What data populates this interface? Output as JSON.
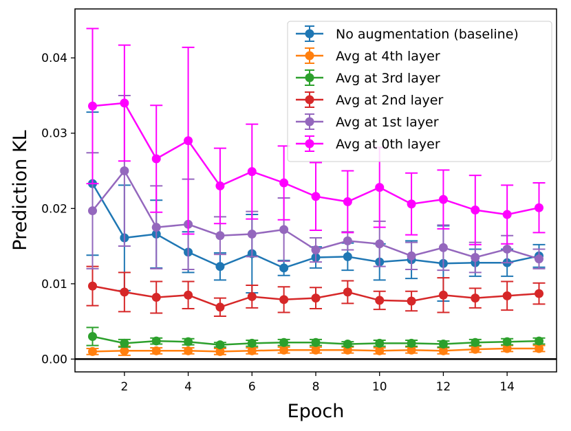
{
  "chart_data": {
    "type": "line",
    "title": "",
    "xlabel": "Epoch",
    "ylabel": "Prediction KL",
    "xlim": [
      0.45,
      15.55
    ],
    "ylim": [
      -0.0017,
      0.0465
    ],
    "x": [
      1,
      2,
      3,
      4,
      5,
      6,
      7,
      8,
      9,
      10,
      11,
      12,
      13,
      14,
      15
    ],
    "x_ticks": [
      "2",
      "4",
      "6",
      "8",
      "10",
      "12",
      "14"
    ],
    "x_tick_values": [
      2,
      4,
      6,
      8,
      10,
      12,
      14
    ],
    "y_ticks": [
      "0.00",
      "0.01",
      "0.02",
      "0.03",
      "0.04"
    ],
    "y_tick_values": [
      0,
      0.01,
      0.02,
      0.03,
      0.04
    ],
    "hline": 0,
    "grid": false,
    "legend_position": "top-right",
    "series": [
      {
        "name": "No augmentation (baseline)",
        "color": "#1f77b4",
        "values": [
          0.0233,
          0.0161,
          0.0166,
          0.0142,
          0.0123,
          0.014,
          0.0121,
          0.0135,
          0.0136,
          0.0129,
          0.0132,
          0.0127,
          0.0128,
          0.0128,
          0.0137
        ],
        "errors": [
          0.0095,
          0.007,
          0.0045,
          0.0027,
          0.0018,
          0.0052,
          0.001,
          0.0014,
          0.0018,
          0.0024,
          0.0025,
          0.005,
          0.0018,
          0.0018,
          0.0015
        ]
      },
      {
        "name": "Avg at 4th layer",
        "color": "#ff7f0e",
        "values": [
          0.001,
          0.0011,
          0.0011,
          0.0011,
          0.001,
          0.0011,
          0.0012,
          0.0012,
          0.0012,
          0.0011,
          0.0012,
          0.0011,
          0.0013,
          0.0014,
          0.0014
        ],
        "errors": [
          0.0004,
          0.0006,
          0.0004,
          0.0004,
          0.0004,
          0.0004,
          0.0004,
          0.0004,
          0.0004,
          0.0004,
          0.0004,
          0.0004,
          0.0004,
          0.0004,
          0.0004
        ]
      },
      {
        "name": "Avg at 3rd layer",
        "color": "#2ca02c",
        "values": [
          0.003,
          0.0021,
          0.0024,
          0.0023,
          0.0019,
          0.0021,
          0.0022,
          0.0022,
          0.002,
          0.0021,
          0.0021,
          0.002,
          0.0022,
          0.0023,
          0.0024
        ],
        "errors": [
          0.0012,
          0.0005,
          0.0004,
          0.0004,
          0.0003,
          0.0004,
          0.0004,
          0.0004,
          0.0003,
          0.0004,
          0.0004,
          0.0004,
          0.0004,
          0.0004,
          0.0004
        ]
      },
      {
        "name": "Avg at 2nd layer",
        "color": "#d62728",
        "values": [
          0.0097,
          0.0089,
          0.0082,
          0.0085,
          0.0069,
          0.0083,
          0.0079,
          0.0081,
          0.0089,
          0.0078,
          0.0077,
          0.0085,
          0.0081,
          0.0084,
          0.0087
        ],
        "errors": [
          0.0026,
          0.0026,
          0.0021,
          0.0018,
          0.0012,
          0.0015,
          0.0017,
          0.0014,
          0.0015,
          0.0012,
          0.0013,
          0.0023,
          0.0013,
          0.0019,
          0.0014
        ]
      },
      {
        "name": "Avg at 1st layer",
        "color": "#9467bd",
        "values": [
          0.0197,
          0.025,
          0.0175,
          0.0179,
          0.0164,
          0.0166,
          0.0172,
          0.0145,
          0.0157,
          0.0153,
          0.0137,
          0.0148,
          0.0135,
          0.0146,
          0.0133
        ],
        "errors": [
          0.0077,
          0.01,
          0.0055,
          0.006,
          0.0025,
          0.003,
          0.0042,
          0.0016,
          0.0012,
          0.003,
          0.0018,
          0.003,
          0.002,
          0.0018,
          0.0013
        ]
      },
      {
        "name": "Avg at 0th layer",
        "color": "#ff00ff",
        "values": [
          0.0336,
          0.034,
          0.0266,
          0.029,
          0.023,
          0.0249,
          0.0234,
          0.0216,
          0.0209,
          0.0228,
          0.0206,
          0.0212,
          0.0198,
          0.0192,
          0.0201
        ],
        "errors": [
          0.0103,
          0.0077,
          0.0071,
          0.0124,
          0.005,
          0.0063,
          0.0049,
          0.0045,
          0.0041,
          0.0053,
          0.0041,
          0.0039,
          0.0046,
          0.0039,
          0.0033
        ]
      }
    ]
  }
}
